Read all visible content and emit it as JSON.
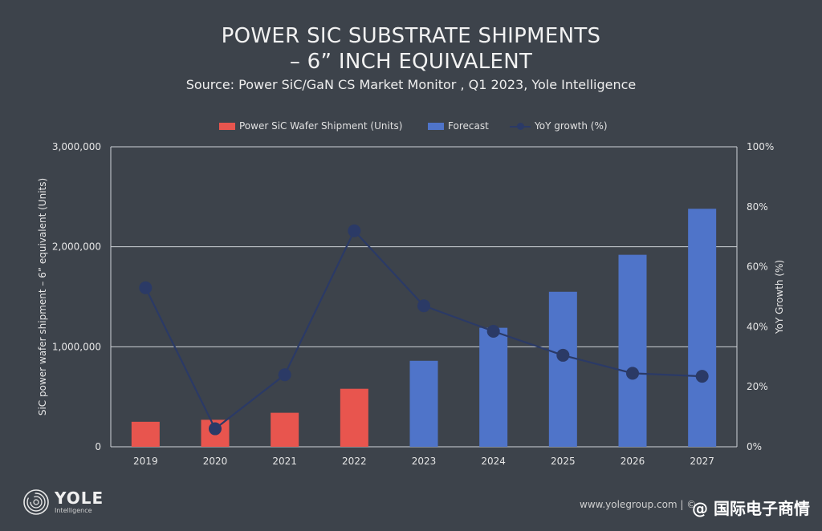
{
  "header": {
    "title_line1": "POWER SIC SUBSTRATE SHIPMENTS",
    "title_line2": "– 6” INCH EQUIVALENT",
    "subtitle": "Source: Power SiC/GaN CS Market Monitor , Q1 2023, Yole Intelligence"
  },
  "legend": {
    "item1": "Power SiC Wafer Shipment (Units)",
    "item2": "Forecast",
    "item3": "YoY growth (%)"
  },
  "colors": {
    "actual": "#e8554e",
    "forecast": "#4f74c9",
    "growth_line": "#2b3a66",
    "grid": "#cfd3d8",
    "background": "#3d434b"
  },
  "chart_data": {
    "type": "bar",
    "categories": [
      "2019",
      "2020",
      "2021",
      "2022",
      "2023",
      "2024",
      "2025",
      "2026",
      "2027"
    ],
    "series": [
      {
        "name": "Power SiC Wafer Shipment (Units)",
        "type": "bar",
        "axis": "left",
        "values": [
          250000,
          270000,
          340000,
          580000,
          null,
          null,
          null,
          null,
          null
        ]
      },
      {
        "name": "Forecast",
        "type": "bar",
        "axis": "left",
        "values": [
          null,
          null,
          null,
          null,
          860000,
          1190000,
          1550000,
          1920000,
          2380000
        ]
      },
      {
        "name": "YoY growth (%)",
        "type": "line",
        "axis": "right",
        "values": [
          53,
          6,
          24,
          72,
          47,
          38.5,
          30.5,
          24.5,
          23.5
        ]
      }
    ],
    "ylabel": "SiC power wafer shipment  – 6” equivalent (Units)",
    "y2label": "YoY Growth (%)",
    "ylim": [
      0,
      3000000
    ],
    "y2lim": [
      0,
      100
    ],
    "yticks": [
      "0",
      "1,000,000",
      "2,000,000",
      "3,000,000"
    ],
    "y2ticks": [
      "0%",
      "20%",
      "40%",
      "60%",
      "80%",
      "100%"
    ],
    "grid": true,
    "legend_position": "top"
  },
  "footer": {
    "brand": "YOLE",
    "brand_sub": "Intelligence",
    "website": "www.yolegroup.com | ©",
    "watermark": "@ 国际电子商情"
  }
}
